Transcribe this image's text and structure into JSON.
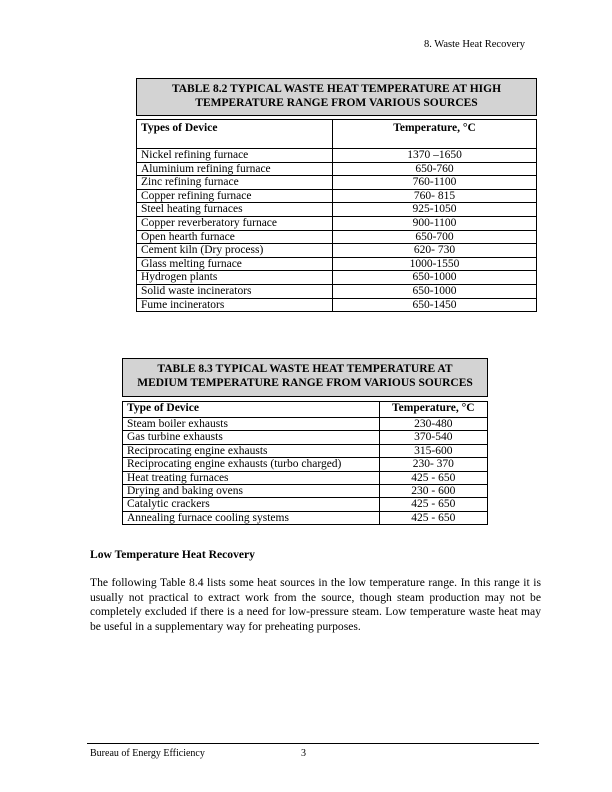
{
  "header": {
    "chapter": "8. Waste Heat Recovery"
  },
  "table82": {
    "title_line1": "TABLE 8.2  TYPICAL WASTE HEAT TEMPERATURE AT HIGH",
    "title_line2": "TEMPERATURE RANGE FROM VARIOUS SOURCES",
    "col_device": "Types of Device",
    "col_temp": "Temperature, °C",
    "rows": [
      {
        "device": "Nickel refining furnace",
        "temp": "1370 –1650"
      },
      {
        "device": "Aluminium refining furnace",
        "temp": "650-760"
      },
      {
        "device": "Zinc refining furnace",
        "temp": "760-1100"
      },
      {
        "device": "Copper refining furnace",
        "temp": "760- 815"
      },
      {
        "device": "Steel heating furnaces",
        "temp": "925-1050"
      },
      {
        "device": "Copper reverberatory furnace",
        "temp": "900-1100"
      },
      {
        "device": "Open hearth furnace",
        "temp": "650-700"
      },
      {
        "device": "Cement kiln (Dry process)",
        "temp": "620- 730"
      },
      {
        "device": "Glass melting furnace",
        "temp": "1000-1550"
      },
      {
        "device": "Hydrogen plants",
        "temp": "650-1000"
      },
      {
        "device": "Solid waste incinerators",
        "temp": "650-1000"
      },
      {
        "device": "Fume incinerators",
        "temp": "650-1450"
      }
    ]
  },
  "table83": {
    "title_line1": "TABLE 8.3  TYPICAL WASTE HEAT TEMPERATURE AT",
    "title_line2": "MEDIUM TEMPERATURE RANGE FROM VARIOUS SOURCES",
    "col_device": "Type of Device",
    "col_temp": "Temperature, °C",
    "rows": [
      {
        "device": "Steam boiler exhausts",
        "temp": "230-480"
      },
      {
        "device": "Gas turbine exhausts",
        "temp": "370-540"
      },
      {
        "device": "Reciprocating engine exhausts",
        "temp": "315-600"
      },
      {
        "device": "Reciprocating engine exhausts (turbo charged)",
        "temp": "230- 370"
      },
      {
        "device": "Heat treating furnaces",
        "temp": "425 - 650"
      },
      {
        "device": "Drying and baking ovens",
        "temp": "230 - 600"
      },
      {
        "device": "Catalytic crackers",
        "temp": "425 - 650"
      },
      {
        "device": "Annealing furnace cooling systems",
        "temp": "425 - 650"
      }
    ]
  },
  "section": {
    "heading": "Low Temperature Heat Recovery",
    "paragraph": "The following Table 8.4 lists some heat sources in the low temperature range.  In this range it is usually not practical to extract work from the source, though steam production may not be completely excluded if there is a need for low-pressure steam.  Low temperature waste heat may be useful in a supplementary way for preheating purposes."
  },
  "footer": {
    "left": "Bureau of Energy Efficiency",
    "page_number": "3",
    "accent_colors": {
      "table_title_bg": "#d3d3d3",
      "border": "#000000"
    }
  }
}
